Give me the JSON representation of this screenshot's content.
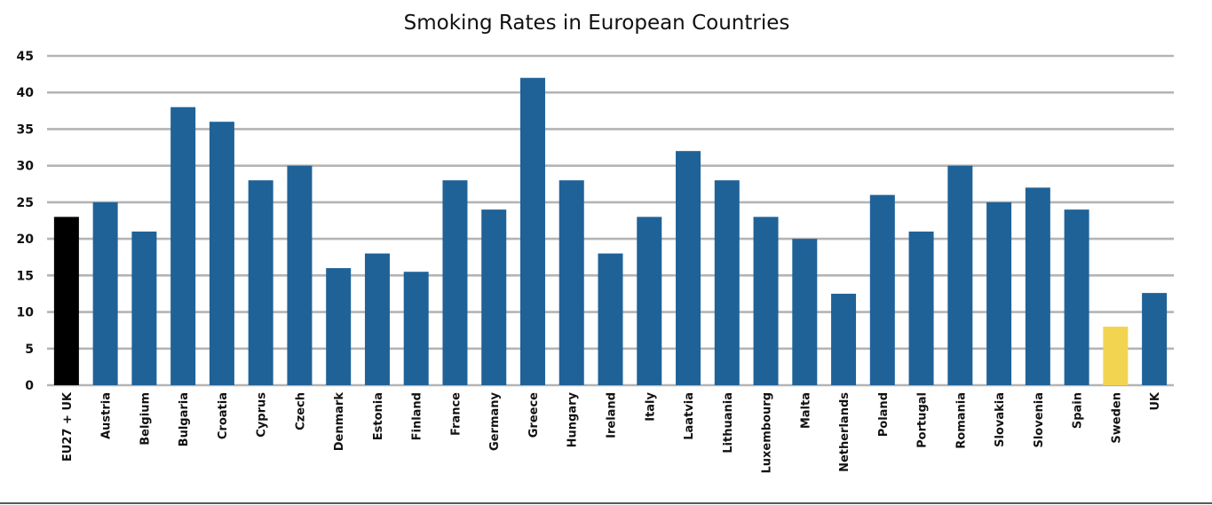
{
  "chart_data": {
    "type": "bar",
    "title": "Smoking Rates in European Countries",
    "xlabel": "",
    "ylabel": "",
    "ylim": [
      0,
      45
    ],
    "yticks": [
      0,
      5,
      10,
      15,
      20,
      25,
      30,
      35,
      40,
      45
    ],
    "grid": true,
    "legend": "none",
    "categories": [
      "EU27 + UK",
      "Austria",
      "Belgium",
      "Bulgaria",
      "Croatia",
      "Cyprus",
      "Czech",
      "Denmark",
      "Estonia",
      "Finland",
      "France",
      "Germany",
      "Greece",
      "Hungary",
      "Ireland",
      "Italy",
      "Laatvia",
      "Lithuania",
      "Luxembourg",
      "Malta",
      "Netherlands",
      "Poland",
      "Portugal",
      "Romania",
      "Slovakia",
      "Slovenia",
      "Spain",
      "Sweden",
      "UK"
    ],
    "values": [
      23,
      25,
      21,
      38,
      36,
      28,
      30,
      16,
      18,
      15.5,
      28,
      24,
      42,
      28,
      18,
      23,
      32,
      28,
      23,
      20,
      12.5,
      26,
      21,
      30,
      25,
      27,
      24,
      8,
      12.6
    ],
    "colors": {
      "default": "#1f6298",
      "EU27 + UK": "#000000",
      "Sweden": "#f2d451"
    }
  }
}
